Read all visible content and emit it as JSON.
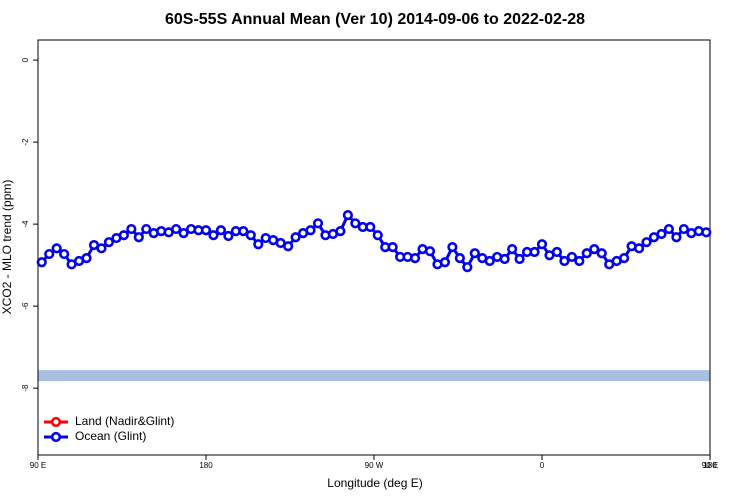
{
  "chart_data": {
    "type": "line",
    "title": "60S-55S Annual Mean (Ver 10)   2014-09-06 to 2022-02-28",
    "xlabel": "Longitude (deg E)",
    "ylabel": "XCO2 - MLO trend (ppm)",
    "xlim": [
      90,
      450
    ],
    "xticks": [
      {
        "value": 90,
        "label": "90 E"
      },
      180,
      {
        "value": 270,
        "label": "90 W"
      },
      {
        "value": 360,
        "label": "0"
      },
      {
        "value": 450,
        "label": "90 E"
      },
      {
        "value": 540,
        "label": "180"
      }
    ],
    "ylim": [
      -9.63,
      0.49
    ],
    "yticks": [
      0,
      -2,
      -4,
      -6,
      -8
    ],
    "band": {
      "ylim": [
        -7.83,
        -7.56
      ],
      "color": "#a7bfe0"
    },
    "legend": "bottom-left",
    "x": [
      92,
      96,
      100,
      104,
      108,
      112,
      116,
      120,
      124,
      128,
      132,
      136,
      140,
      144,
      148,
      152,
      156,
      160,
      164,
      168,
      172,
      176,
      180,
      184,
      188,
      192,
      196,
      200,
      204,
      208,
      212,
      216,
      220,
      224,
      228,
      232,
      236,
      240,
      244,
      248,
      252,
      256,
      260,
      264,
      268,
      272,
      276,
      280,
      284,
      288,
      292,
      296,
      300,
      304,
      308,
      312,
      316,
      320,
      324,
      328,
      332,
      336,
      340,
      344,
      348,
      352,
      356,
      360,
      364,
      368,
      372,
      376,
      380,
      384,
      388,
      392,
      396,
      400,
      404,
      408,
      412,
      416,
      420,
      424,
      428,
      432,
      436,
      440,
      444,
      448
    ],
    "series": [
      {
        "name": "Land (Nadir&Glint)",
        "color": "#ff0000",
        "values": [
          null,
          null,
          null,
          null,
          null,
          null,
          null,
          null,
          null,
          null,
          null,
          null,
          null,
          null,
          null,
          null,
          null,
          null,
          null,
          null,
          null,
          null,
          null,
          null,
          null,
          null,
          null,
          null,
          null,
          null,
          null,
          null,
          null,
          null,
          null,
          null,
          null,
          null,
          null,
          null,
          null,
          null,
          null,
          null,
          null,
          null,
          null,
          null,
          null,
          null,
          null,
          null,
          null,
          null,
          null,
          null,
          null,
          null,
          null,
          null,
          null,
          null,
          null,
          null,
          null,
          null,
          null,
          null,
          null,
          null,
          null,
          null,
          null,
          null,
          null,
          null,
          null,
          null,
          null,
          null,
          null,
          null,
          null,
          null,
          null,
          null,
          null,
          null,
          null,
          null
        ]
      },
      {
        "name": "Ocean (Glint)",
        "color": "#0000ee",
        "values": [
          -4.93,
          -4.73,
          -4.59,
          -4.73,
          -4.98,
          -4.9,
          -4.83,
          -4.51,
          -4.59,
          -4.44,
          -4.34,
          -4.27,
          -4.12,
          -4.32,
          -4.12,
          -4.22,
          -4.17,
          -4.2,
          -4.12,
          -4.22,
          -4.12,
          -4.15,
          -4.15,
          -4.27,
          -4.15,
          -4.29,
          -4.17,
          -4.17,
          -4.27,
          -4.49,
          -4.34,
          -4.39,
          -4.46,
          -4.54,
          -4.32,
          -4.22,
          -4.15,
          -3.98,
          -4.27,
          -4.24,
          -4.17,
          -3.78,
          -3.98,
          -4.07,
          -4.07,
          -4.27,
          -4.56,
          -4.56,
          -4.8,
          -4.8,
          -4.83,
          -4.61,
          -4.66,
          -4.98,
          -4.93,
          -4.56,
          -4.83,
          -5.05,
          -4.71,
          -4.83,
          -4.9,
          -4.8,
          -4.85,
          -4.61,
          -4.85,
          -4.68,
          -4.68,
          -4.49,
          -4.76,
          -4.68,
          -4.9,
          -4.8,
          -4.9,
          -4.71,
          -4.61,
          -4.71,
          -4.98,
          -4.9,
          -4.83,
          -4.54,
          -4.59,
          -4.44,
          -4.32,
          -4.24,
          -4.12,
          -4.32,
          -4.12,
          -4.22,
          -4.17,
          -4.2
        ]
      }
    ]
  }
}
